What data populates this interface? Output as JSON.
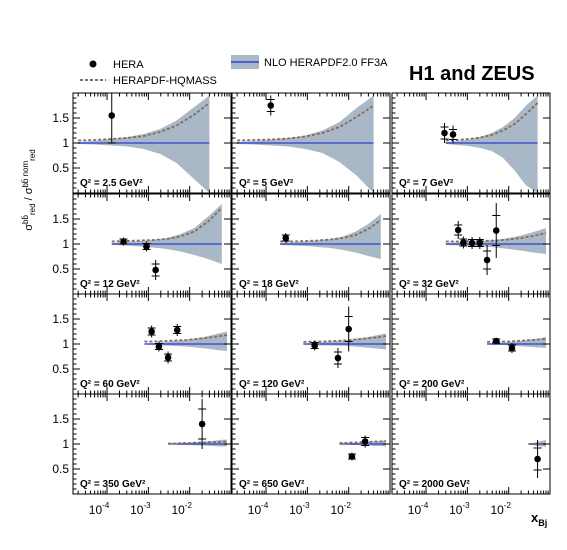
{
  "chart_data": {
    "type": "scatter",
    "title": "H1 and ZEUS",
    "xlabel": "x_Bj",
    "ylabel": "σ_red^bb̄ / σ_red^bb̄ nom",
    "x_scale": "log",
    "xlim": [
      1.5e-05,
      0.1
    ],
    "ylim": [
      0,
      2.0
    ],
    "xticks": [
      {
        "value": 0.0001,
        "base": "10",
        "exp": "-4"
      },
      {
        "value": 0.001,
        "base": "10",
        "exp": "-3"
      },
      {
        "value": 0.01,
        "base": "10",
        "exp": "-2"
      }
    ],
    "yticks": [
      "0.5",
      "1",
      "1.5"
    ],
    "ytick_values": [
      0.5,
      1,
      1.5
    ],
    "legend": {
      "placement": "top",
      "hera": "HERA",
      "hqmass": "HERAPDF-HQMASS",
      "nlo": "NLO HERAPDF2.0 FF3A"
    },
    "colors": {
      "band": "#a9b8c6",
      "nominal": "#2c3fd6",
      "hqmass": "#8a6a55",
      "points": "#000000"
    },
    "panels": [
      {
        "label": "Q² = 2.5 GeV²",
        "q2": 2.5,
        "xmin": 2e-05,
        "xmax": 0.03,
        "band_lo": [
          0.98,
          0.97,
          0.95,
          0.93,
          0.88,
          0.78,
          0.6,
          0.3,
          0.0
        ],
        "band_hi": [
          1.02,
          1.04,
          1.08,
          1.12,
          1.18,
          1.28,
          1.45,
          1.7,
          1.95
        ],
        "hq": [
          1.05,
          1.06,
          1.08,
          1.1,
          1.14,
          1.22,
          1.35,
          1.55,
          1.8
        ],
        "points": [
          {
            "x": 0.00013,
            "y": 1.55,
            "err": 0.55,
            "stat": 0.55
          }
        ]
      },
      {
        "label": "Q² = 5 GeV²",
        "q2": 5,
        "xmin": 2e-05,
        "xmax": 0.04,
        "band_lo": [
          0.98,
          0.97,
          0.95,
          0.93,
          0.88,
          0.8,
          0.62,
          0.35,
          0.0
        ],
        "band_hi": [
          1.02,
          1.04,
          1.07,
          1.1,
          1.15,
          1.25,
          1.42,
          1.7,
          1.95
        ],
        "hq": [
          1.05,
          1.06,
          1.07,
          1.09,
          1.13,
          1.2,
          1.32,
          1.52,
          1.75
        ],
        "points": [
          {
            "x": 0.00013,
            "y": 1.75,
            "err": 0.2,
            "stat": 0.12
          }
        ]
      },
      {
        "label": "Q² = 7 GeV²",
        "q2": 7,
        "xmin": 0.0003,
        "xmax": 0.05,
        "band_lo": [
          0.98,
          0.96,
          0.94,
          0.9,
          0.84,
          0.7,
          0.45,
          0.15,
          0.0
        ],
        "band_hi": [
          1.02,
          1.04,
          1.07,
          1.12,
          1.2,
          1.32,
          1.5,
          1.75,
          1.95
        ],
        "hq": [
          1.05,
          1.06,
          1.08,
          1.11,
          1.16,
          1.25,
          1.38,
          1.58,
          1.8
        ],
        "points": [
          {
            "x": 0.00028,
            "y": 1.2,
            "err": 0.2,
            "stat": 0.12
          },
          {
            "x": 0.00045,
            "y": 1.17,
            "err": 0.18,
            "stat": 0.1
          }
        ]
      },
      {
        "label": "Q² = 12 GeV²",
        "q2": 12,
        "xmin": 0.00013,
        "xmax": 0.06,
        "band_lo": [
          0.98,
          0.97,
          0.95,
          0.93,
          0.9,
          0.85,
          0.78,
          0.7,
          0.6
        ],
        "band_hi": [
          1.02,
          1.04,
          1.06,
          1.08,
          1.12,
          1.2,
          1.32,
          1.55,
          1.8
        ],
        "hq": [
          1.05,
          1.06,
          1.07,
          1.08,
          1.1,
          1.15,
          1.25,
          1.45,
          1.72
        ],
        "points": [
          {
            "x": 0.00025,
            "y": 1.05,
            "err": 0.08,
            "stat": 0.05
          },
          {
            "x": 0.0009,
            "y": 0.95,
            "err": 0.1,
            "stat": 0.06
          },
          {
            "x": 0.0015,
            "y": 0.48,
            "err": 0.2,
            "stat": 0.12
          }
        ]
      },
      {
        "label": "Q² = 18 GeV²",
        "q2": 18,
        "xmin": 0.00022,
        "xmax": 0.06,
        "band_lo": [
          0.98,
          0.97,
          0.96,
          0.94,
          0.92,
          0.88,
          0.83,
          0.76,
          0.7
        ],
        "band_hi": [
          1.02,
          1.03,
          1.05,
          1.07,
          1.1,
          1.15,
          1.25,
          1.4,
          1.6
        ],
        "hq": [
          1.05,
          1.05,
          1.06,
          1.07,
          1.09,
          1.12,
          1.18,
          1.3,
          1.48
        ],
        "points": [
          {
            "x": 0.0003,
            "y": 1.12,
            "err": 0.1,
            "stat": 0.06
          }
        ]
      },
      {
        "label": "Q² = 32 GeV²",
        "q2": 32,
        "xmin": 0.0003,
        "xmax": 0.08,
        "band_lo": [
          0.98,
          0.97,
          0.96,
          0.95,
          0.93,
          0.9,
          0.87,
          0.83,
          0.8
        ],
        "band_hi": [
          1.02,
          1.03,
          1.04,
          1.06,
          1.08,
          1.12,
          1.17,
          1.24,
          1.32
        ],
        "hq": [
          1.05,
          1.05,
          1.06,
          1.06,
          1.07,
          1.09,
          1.12,
          1.16,
          1.22
        ],
        "points": [
          {
            "x": 0.0006,
            "y": 1.28,
            "err": 0.18,
            "stat": 0.1
          },
          {
            "x": 0.0008,
            "y": 1.03,
            "err": 0.12,
            "stat": 0.07
          },
          {
            "x": 0.0013,
            "y": 1.02,
            "err": 0.12,
            "stat": 0.07
          },
          {
            "x": 0.002,
            "y": 1.02,
            "err": 0.12,
            "stat": 0.07
          },
          {
            "x": 0.003,
            "y": 0.68,
            "err": 0.3,
            "stat": 0.18
          },
          {
            "x": 0.005,
            "y": 1.27,
            "err": 0.55,
            "stat": 0.3
          }
        ]
      },
      {
        "label": "Q² = 60 GeV²",
        "q2": 60,
        "xmin": 0.0008,
        "xmax": 0.08,
        "band_lo": [
          0.99,
          0.98,
          0.97,
          0.96,
          0.95,
          0.93,
          0.91,
          0.88,
          0.86
        ],
        "band_hi": [
          1.01,
          1.02,
          1.04,
          1.06,
          1.08,
          1.11,
          1.15,
          1.2,
          1.25
        ],
        "hq": [
          1.05,
          1.05,
          1.06,
          1.07,
          1.08,
          1.1,
          1.12,
          1.15,
          1.18
        ],
        "points": [
          {
            "x": 0.0012,
            "y": 1.25,
            "err": 0.12,
            "stat": 0.07
          },
          {
            "x": 0.0018,
            "y": 0.95,
            "err": 0.1,
            "stat": 0.06
          },
          {
            "x": 0.003,
            "y": 0.73,
            "err": 0.12,
            "stat": 0.07
          },
          {
            "x": 0.005,
            "y": 1.28,
            "err": 0.12,
            "stat": 0.07
          }
        ]
      },
      {
        "label": "Q² = 120 GeV²",
        "q2": 120,
        "xmin": 0.0008,
        "xmax": 0.08,
        "band_lo": [
          0.99,
          0.98,
          0.97,
          0.97,
          0.96,
          0.95,
          0.93,
          0.91,
          0.89
        ],
        "band_hi": [
          1.01,
          1.02,
          1.04,
          1.05,
          1.07,
          1.1,
          1.13,
          1.17,
          1.21
        ],
        "hq": [
          1.04,
          1.05,
          1.05,
          1.06,
          1.07,
          1.09,
          1.11,
          1.13,
          1.16
        ],
        "points": [
          {
            "x": 0.0015,
            "y": 0.97,
            "err": 0.1,
            "stat": 0.06
          },
          {
            "x": 0.0055,
            "y": 0.72,
            "err": 0.2,
            "stat": 0.12
          },
          {
            "x": 0.01,
            "y": 1.3,
            "err": 0.45,
            "stat": 0.25
          }
        ]
      },
      {
        "label": "Q² = 200 GeV²",
        "q2": 200,
        "xmin": 0.003,
        "xmax": 0.08,
        "band_lo": [
          0.99,
          0.98,
          0.98,
          0.97,
          0.96,
          0.95,
          0.94,
          0.93,
          0.92
        ],
        "band_hi": [
          1.01,
          1.02,
          1.03,
          1.04,
          1.05,
          1.07,
          1.09,
          1.11,
          1.14
        ],
        "hq": [
          1.04,
          1.04,
          1.05,
          1.05,
          1.06,
          1.07,
          1.08,
          1.09,
          1.1
        ],
        "points": [
          {
            "x": 0.005,
            "y": 1.06,
            "err": 0.06,
            "stat": 0.04
          },
          {
            "x": 0.012,
            "y": 0.92,
            "err": 0.1,
            "stat": 0.06
          }
        ]
      },
      {
        "label": "Q² = 350 GeV²",
        "q2": 350,
        "xmin": 0.003,
        "xmax": 0.08,
        "band_lo": [
          0.99,
          0.99,
          0.98,
          0.98,
          0.97,
          0.97,
          0.96,
          0.95,
          0.95
        ],
        "band_hi": [
          1.01,
          1.01,
          1.02,
          1.03,
          1.04,
          1.05,
          1.06,
          1.08,
          1.09
        ],
        "hq": [
          1.01,
          1.01,
          1.02,
          1.02,
          1.03,
          1.03,
          1.04,
          1.04,
          1.05
        ],
        "points": [
          {
            "x": 0.02,
            "y": 1.4,
            "err": 0.5,
            "stat": 0.3
          }
        ]
      },
      {
        "label": "Q² = 650 GeV²",
        "q2": 650,
        "xmin": 0.006,
        "xmax": 0.08,
        "band_lo": [
          0.99,
          0.99,
          0.98,
          0.98,
          0.97,
          0.97,
          0.96,
          0.96,
          0.95
        ],
        "band_hi": [
          1.01,
          1.01,
          1.02,
          1.02,
          1.03,
          1.04,
          1.05,
          1.06,
          1.07
        ],
        "hq": [
          1.02,
          1.02,
          1.03,
          1.03,
          1.04,
          1.04,
          1.05,
          1.05,
          1.06
        ],
        "points": [
          {
            "x": 0.012,
            "y": 0.75,
            "err": 0.08,
            "stat": 0.05
          },
          {
            "x": 0.025,
            "y": 1.05,
            "err": 0.12,
            "stat": 0.08
          }
        ]
      },
      {
        "label": "Q² = 2000 GeV²",
        "q2": 2000,
        "xmin": 0.03,
        "xmax": 0.08,
        "band_lo": [
          0.99,
          0.98,
          0.98,
          0.97,
          0.96,
          0.96,
          0.95,
          0.95,
          0.94
        ],
        "band_hi": [
          1.01,
          1.02,
          1.02,
          1.03,
          1.04,
          1.05,
          1.06,
          1.07,
          1.08
        ],
        "hq": [
          1.0,
          1.0,
          1.0,
          1.0,
          1.0,
          1.0,
          1.0,
          1.0,
          1.0
        ],
        "points": [
          {
            "x": 0.05,
            "y": 0.7,
            "err": 0.38,
            "stat": 0.22
          }
        ]
      }
    ]
  }
}
